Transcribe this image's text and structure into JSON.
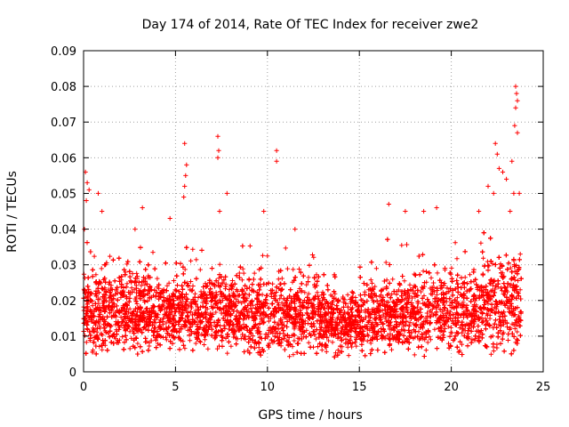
{
  "chart_data": {
    "type": "scatter",
    "title": "Day 174 of 2014, Rate Of TEC Index for receiver zwe2",
    "xlabel": "GPS time / hours",
    "ylabel": "ROTI / TECUs",
    "xlim": [
      0,
      25
    ],
    "ylim": [
      0,
      0.09
    ],
    "x_ticks": [
      0,
      5,
      10,
      15,
      20,
      25
    ],
    "x_tick_labels": [
      "0",
      "5",
      "10",
      "15",
      "20",
      "25"
    ],
    "y_ticks": [
      0,
      0.01,
      0.02,
      0.03,
      0.04,
      0.05,
      0.06,
      0.07,
      0.08,
      0.09
    ],
    "y_tick_labels": [
      "0",
      "0.01",
      "0.02",
      "0.03",
      "0.04",
      "0.05",
      "0.06",
      "0.07",
      "0.08",
      "0.09"
    ],
    "grid": true,
    "marker": "+",
    "series": [
      {
        "name": "ROTI",
        "color": "#ff0000",
        "points_count_estimate": 8000,
        "dense_band": {
          "x_range": [
            0,
            23.8
          ],
          "y_range": [
            0.005,
            0.03
          ]
        },
        "notable_points": [
          [
            0.1,
            0.056
          ],
          [
            0.2,
            0.053
          ],
          [
            0.3,
            0.051
          ],
          [
            0.15,
            0.048
          ],
          [
            0.8,
            0.05
          ],
          [
            1.0,
            0.045
          ],
          [
            2.8,
            0.04
          ],
          [
            3.2,
            0.046
          ],
          [
            4.7,
            0.043
          ],
          [
            5.5,
            0.064
          ],
          [
            5.6,
            0.058
          ],
          [
            5.55,
            0.055
          ],
          [
            5.5,
            0.052
          ],
          [
            5.45,
            0.049
          ],
          [
            7.3,
            0.066
          ],
          [
            7.35,
            0.062
          ],
          [
            7.3,
            0.06
          ],
          [
            7.4,
            0.045
          ],
          [
            7.8,
            0.05
          ],
          [
            9.8,
            0.045
          ],
          [
            10.5,
            0.062
          ],
          [
            10.5,
            0.059
          ],
          [
            11.5,
            0.04
          ],
          [
            16.6,
            0.047
          ],
          [
            17.5,
            0.045
          ],
          [
            18.5,
            0.045
          ],
          [
            19.2,
            0.046
          ],
          [
            21.5,
            0.045
          ],
          [
            22.0,
            0.052
          ],
          [
            22.4,
            0.064
          ],
          [
            22.5,
            0.061
          ],
          [
            22.6,
            0.057
          ],
          [
            22.3,
            0.05
          ],
          [
            22.8,
            0.056
          ],
          [
            23.0,
            0.054
          ],
          [
            23.3,
            0.059
          ],
          [
            23.5,
            0.08
          ],
          [
            23.55,
            0.078
          ],
          [
            23.6,
            0.076
          ],
          [
            23.5,
            0.074
          ],
          [
            23.45,
            0.069
          ],
          [
            23.6,
            0.067
          ],
          [
            23.4,
            0.05
          ],
          [
            23.7,
            0.05
          ],
          [
            23.2,
            0.045
          ],
          [
            0.05,
            0.04
          ]
        ]
      }
    ]
  }
}
